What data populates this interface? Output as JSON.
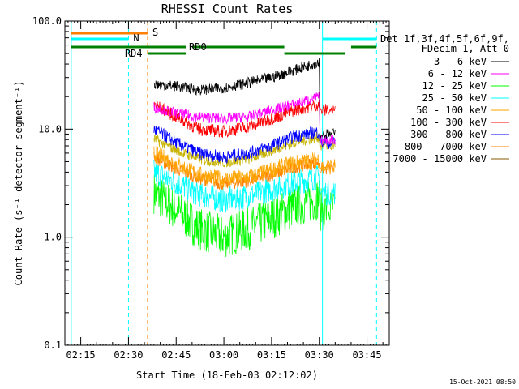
{
  "chart_data": {
    "type": "line",
    "title": "RHESSI Count Rates",
    "xlabel": "Start Time (18-Feb-03 02:12:02)",
    "ylabel": "Count Rate (s⁻¹ detector segment⁻¹)",
    "x_unit": "minutes",
    "xlim": [
      "02:10",
      "03:52"
    ],
    "ylim": [
      0.1,
      100.0
    ],
    "yscale": "log",
    "x_ticks": [
      "02:15",
      "02:30",
      "02:45",
      "03:00",
      "03:15",
      "03:30",
      "03:45"
    ],
    "y_ticks": [
      "0.1",
      "1.0",
      "10.0",
      "100.0"
    ],
    "grid": false,
    "legend_header": [
      "Det 1f,3f,4f,5f,6f,9f,",
      "FDecim 1, Att 0"
    ],
    "legend_position": "right",
    "series": [
      {
        "name": "3 - 6 keV",
        "color": "#000000",
        "x": [
          "02:38",
          "02:45",
          "02:52",
          "03:00",
          "03:08",
          "03:15",
          "03:22",
          "03:30",
          "03:35"
        ],
        "y": [
          26,
          25,
          23,
          24,
          27,
          30,
          35,
          42,
          9.0
        ]
      },
      {
        "name": "6 - 12 keV",
        "color": "#ff00ff",
        "x": [
          "02:38",
          "02:45",
          "02:52",
          "03:00",
          "03:08",
          "03:15",
          "03:22",
          "03:30",
          "03:35"
        ],
        "y": [
          16,
          14,
          13,
          12.5,
          13,
          15,
          17,
          20,
          8.0
        ]
      },
      {
        "name": "12 - 25 keV",
        "color": "#00ff00",
        "x": [
          "02:38",
          "02:45",
          "02:52",
          "03:00",
          "03:08",
          "03:15",
          "03:22",
          "03:30",
          "03:35"
        ],
        "y": [
          2.6,
          1.8,
          1.2,
          1.0,
          1.2,
          1.5,
          1.9,
          2.3,
          1.8
        ]
      },
      {
        "name": "25 - 50 keV",
        "color": "#00ffff",
        "x": [
          "02:38",
          "02:45",
          "02:52",
          "03:00",
          "03:08",
          "03:15",
          "03:22",
          "03:30",
          "03:35"
        ],
        "y": [
          4.0,
          3.2,
          2.5,
          2.2,
          2.4,
          2.8,
          3.2,
          3.6,
          2.6
        ]
      },
      {
        "name": "50 - 100 keV",
        "color": "#ffa500",
        "x": [
          "02:38",
          "02:45",
          "02:52",
          "03:00",
          "03:08",
          "03:15",
          "03:22",
          "03:30",
          "03:35"
        ],
        "y": [
          6.0,
          4.8,
          3.8,
          3.4,
          3.6,
          4.2,
          4.8,
          5.3,
          4.5
        ]
      },
      {
        "name": "100 - 300 keV",
        "color": "#ff0000",
        "x": [
          "02:38",
          "02:45",
          "02:52",
          "03:00",
          "03:08",
          "03:15",
          "03:22",
          "03:30",
          "03:35"
        ],
        "y": [
          17,
          13,
          10,
          9.5,
          10.5,
          12.5,
          15,
          17,
          15
        ]
      },
      {
        "name": "300 - 800 keV",
        "color": "#0000ff",
        "x": [
          "02:38",
          "02:45",
          "02:52",
          "03:00",
          "03:08",
          "03:15",
          "03:22",
          "03:30",
          "03:35"
        ],
        "y": [
          10,
          7.5,
          6.0,
          5.5,
          6.0,
          7.0,
          8.5,
          9.5,
          7.5
        ]
      },
      {
        "name": "800 - 7000 keV",
        "color": "#ff8000",
        "x": [
          "02:38",
          "02:45",
          "02:52",
          "03:00",
          "03:08",
          "03:15",
          "03:22",
          "03:30",
          "03:35"
        ],
        "y": [
          5.5,
          4.3,
          3.5,
          3.1,
          3.3,
          3.8,
          4.4,
          5.0,
          4.3
        ]
      },
      {
        "name": "7000 - 15000 keV",
        "color": "#8b5a00",
        "x": [],
        "y": []
      },
      {
        "name": "",
        "color": "#c8b400",
        "x": [
          "02:38",
          "02:45",
          "02:52",
          "03:00",
          "03:08",
          "03:15",
          "03:22",
          "03:30",
          "03:35"
        ],
        "y": [
          8.2,
          6.3,
          5.3,
          4.9,
          5.3,
          6.3,
          7.5,
          8.5,
          7.0
        ]
      }
    ],
    "vertical_lines": [
      {
        "x": "02:12",
        "color": "#00ffff",
        "style": "solid"
      },
      {
        "x": "02:30",
        "color": "#00ffff",
        "style": "dashed"
      },
      {
        "x": "02:36",
        "color": "#ff8000",
        "style": "dashed"
      },
      {
        "x": "03:31",
        "color": "#00ffff",
        "style": "solid"
      },
      {
        "x": "03:48",
        "color": "#00ffff",
        "style": "dashed"
      }
    ],
    "flag_bars": [
      {
        "label": "S",
        "color": "#ff8000",
        "level": 1,
        "segments": [
          [
            "02:12",
            "02:36"
          ]
        ]
      },
      {
        "label": "N",
        "color": "#00ffff",
        "level": 2,
        "segments": [
          [
            "02:12",
            "02:30"
          ],
          [
            "03:31",
            "03:48"
          ]
        ]
      },
      {
        "label": "RD0",
        "color": "#008000",
        "level": 3,
        "segments": [
          [
            "02:12",
            "02:48"
          ],
          [
            "02:50",
            "03:19"
          ],
          [
            "03:40",
            "03:48"
          ]
        ]
      },
      {
        "label": "RD4",
        "color": "#008000",
        "level": 4,
        "segments": [
          [
            "02:36",
            "02:48"
          ],
          [
            "03:19",
            "03:38"
          ]
        ]
      }
    ]
  },
  "timestamp": "15-Oct-2021 08:50"
}
